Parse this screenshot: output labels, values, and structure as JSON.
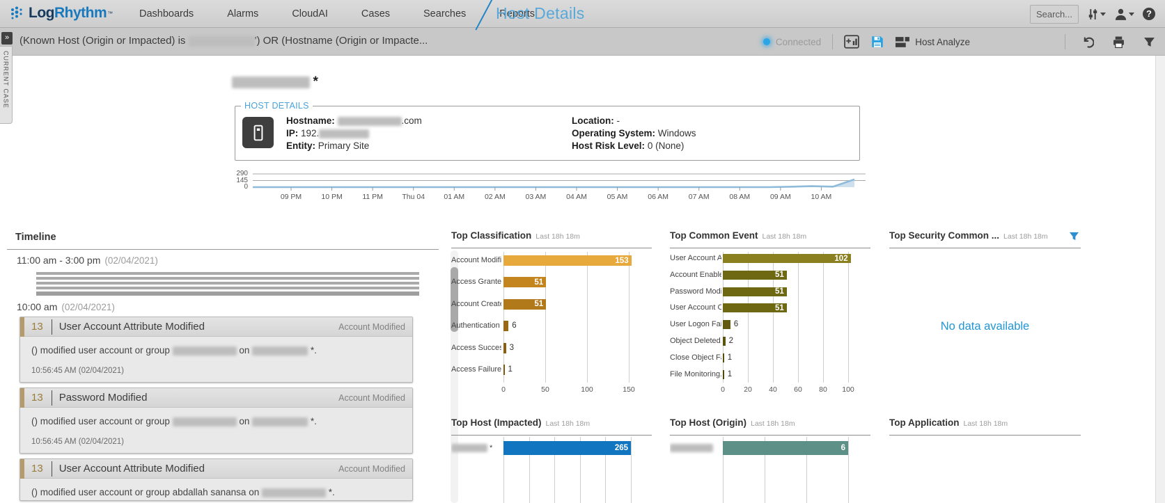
{
  "nav": {
    "logo_log": "Log",
    "logo_rhythm": "Rhythm",
    "logo_mark": "™",
    "items": [
      "Dashboards",
      "Alarms",
      "CloudAI",
      "Cases",
      "Searches",
      "Reports"
    ],
    "page_title": "Host Details",
    "search_label": "Search..."
  },
  "filter_bar": {
    "query_prefix": "(Known Host (Origin or Impacted) is ",
    "query_suffix": "') OR (Hostname (Origin or Impacte...",
    "connected_label": "Connected",
    "host_analyze_label": "Host Analyze"
  },
  "current_case_label": "CURRENT CASE",
  "host_details": {
    "legend": "HOST DETAILS",
    "title_suffix": "*",
    "hostname_label": "Hostname:",
    "hostname_suffix": ".com",
    "ip_label": "IP:",
    "ip_prefix": "192.",
    "entity_label": "Entity:",
    "entity_value": "Primary Site",
    "location_label": "Location:",
    "location_value": "-",
    "os_label": "Operating System:",
    "os_value": "Windows",
    "risk_label": "Host Risk Level:",
    "risk_value": "0 (None)"
  },
  "timeline": {
    "header": "Timeline",
    "groups": [
      {
        "time": "11:00 am - 3:00 pm",
        "date": "(02/04/2021)",
        "collapsed_rows": 5,
        "cards": []
      },
      {
        "time": "10:00 am",
        "date": "(02/04/2021)",
        "cards": [
          {
            "count": "13",
            "title": "User Account Attribute Modified",
            "tag": "Account Modified",
            "body_parts": [
              "() modified user account or group",
              "REDACTED",
              "on",
              "REDACTED",
              "*."
            ],
            "timestamp": "10:56:45 AM (02/04/2021)"
          },
          {
            "count": "13",
            "title": "Password Modified",
            "tag": "Account Modified",
            "body_parts": [
              "() modified user account or group",
              "REDACTED",
              "on",
              "REDACTED",
              "*."
            ],
            "timestamp": "10:56:45 AM (02/04/2021)"
          },
          {
            "count": "13",
            "title": "User Account Attribute Modified",
            "tag": "Account Modified",
            "body_parts": [
              "() modified user account or group abdallah sanansa on",
              "REDACTED",
              "*."
            ],
            "timestamp": ""
          }
        ]
      }
    ]
  },
  "chart_data": [
    {
      "type": "area",
      "name": "host-activity-sparkline",
      "x_tick_labels": [
        "09 PM",
        "10 PM",
        "11 PM",
        "Thu 04",
        "01 AM",
        "02 AM",
        "03 AM",
        "04 AM",
        "05 AM",
        "06 AM",
        "07 AM",
        "08 AM",
        "09 AM",
        "10 AM"
      ],
      "y_ticks": [
        0,
        145,
        290
      ],
      "ylim": [
        0,
        290
      ],
      "values": [
        0,
        0,
        0,
        0,
        0,
        0,
        0,
        0,
        0,
        0,
        0,
        0,
        0,
        0,
        0,
        0,
        0,
        0,
        0,
        0,
        0,
        0,
        0,
        0,
        0,
        8,
        22,
        10,
        170
      ],
      "line_color": "#8FBBDA",
      "fill_color": "#C9DDEC"
    },
    {
      "type": "bar",
      "orientation": "horizontal",
      "title": "Top Classification",
      "subtitle": "Last 18h 18m",
      "categories": [
        "Account Modifi...",
        "Access Granted",
        "Account Created",
        "Authentication ...",
        "Access Success",
        "Access Failure"
      ],
      "values": [
        153,
        51,
        51,
        6,
        3,
        1
      ],
      "x_ticks": [
        0,
        50,
        100,
        150
      ],
      "bar_colors": [
        "#E8A93C",
        "#C4851F",
        "#B2791B",
        "#9A6714",
        "#8E5E10",
        "#81550C"
      ]
    },
    {
      "type": "bar",
      "orientation": "horizontal",
      "title": "Top Common Event",
      "subtitle": "Last 18h 18m",
      "categories": [
        "User Account A...",
        "Account Enabled",
        "Password Modif...",
        "User Account C...",
        "User Logon Fail...",
        "Object Deleted...",
        "Close Object Fai...",
        "File Monitoring..."
      ],
      "values": [
        102,
        51,
        51,
        51,
        6,
        2,
        1,
        1
      ],
      "x_ticks": [
        0,
        20,
        40,
        60,
        80,
        100
      ],
      "bar_colors": [
        "#8A8020",
        "#6F6812",
        "#6F6812",
        "#6F6812",
        "#615A0E",
        "#5A540C",
        "#544E0B",
        "#4F4A0A"
      ]
    },
    {
      "type": "bar",
      "title": "Top Security Common ...",
      "subtitle": "Last 18h 18m",
      "categories": [],
      "values": [],
      "no_data_text": "No data available"
    },
    {
      "type": "bar",
      "orientation": "horizontal",
      "title": "Top Host (Impacted)",
      "subtitle": "Last 18h 18m",
      "label_redacted": true,
      "label_suffix": "*",
      "categories": [
        ""
      ],
      "values": [
        265
      ],
      "bar_colors": [
        "#1176BF"
      ]
    },
    {
      "type": "bar",
      "orientation": "horizontal",
      "title": "Top Host (Origin)",
      "subtitle": "Last 18h 18m",
      "label_redacted": true,
      "label_suffix": "",
      "categories": [
        ""
      ],
      "values": [
        6
      ],
      "bar_colors": [
        "#5D9188"
      ]
    },
    {
      "type": "bar",
      "title": "Top Application",
      "subtitle": "Last 18h 18m",
      "categories": [],
      "values": []
    }
  ]
}
